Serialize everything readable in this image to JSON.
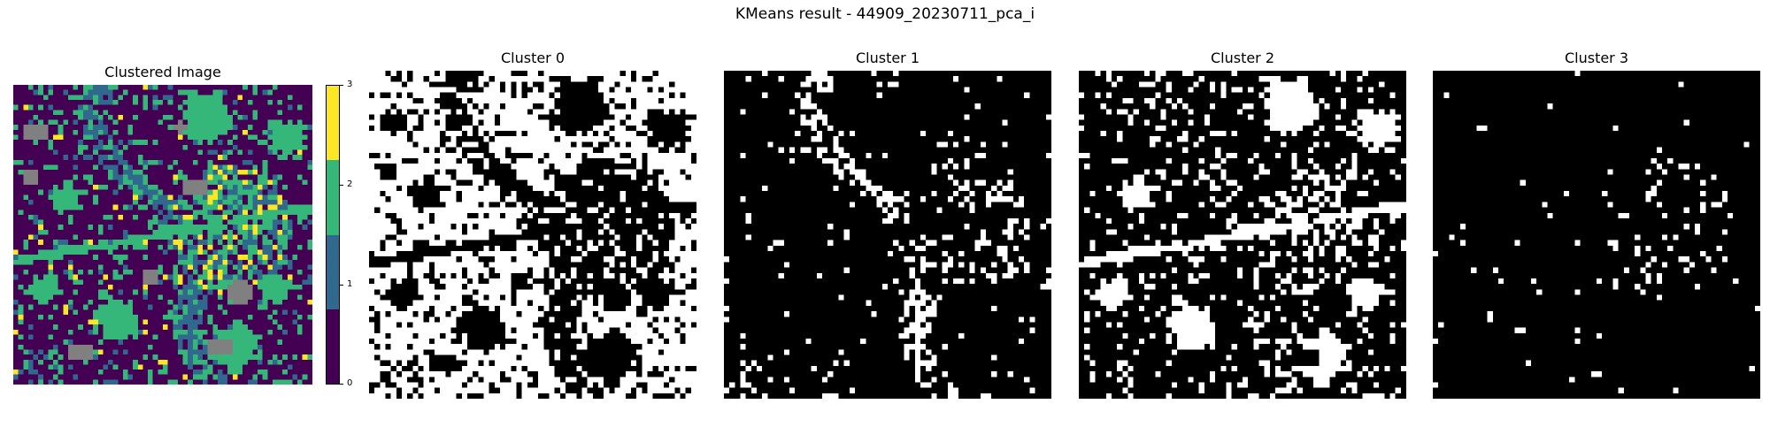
{
  "figure": {
    "suptitle": "KMeans result - 44909_20230711_pca_i"
  },
  "panels": {
    "clustered_title": "Clustered Image",
    "cluster0_title": "Cluster 0",
    "cluster1_title": "Cluster 1",
    "cluster2_title": "Cluster 2",
    "cluster3_title": "Cluster 3"
  },
  "colorbar": {
    "ticks": [
      "0",
      "1",
      "2",
      "3"
    ],
    "colors": [
      "#440154",
      "#31688e",
      "#35b779",
      "#fde725"
    ],
    "nodata_color": "#808080"
  },
  "chart_data": {
    "type": "heatmap",
    "title": "Clustered Image",
    "colormap": "viridis",
    "vmin": 0,
    "vmax": 3,
    "n_clusters": 4
  }
}
